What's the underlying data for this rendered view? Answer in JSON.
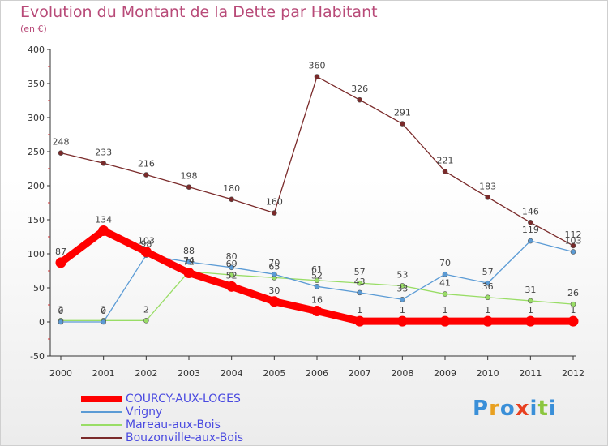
{
  "title": "Evolution du Montant de la Dette par Habitant",
  "subtitle": "(en €)",
  "logo": {
    "text": "Proxiti",
    "colors": [
      "#3a8fd8",
      "#e8a020",
      "#3a8fd8",
      "#e84020",
      "#3a8fd8",
      "#8cc63f",
      "#3a8fd8"
    ]
  },
  "chart_data": {
    "type": "line",
    "x": [
      "2000",
      "2001",
      "2002",
      "2003",
      "2004",
      "2005",
      "2006",
      "2007",
      "2008",
      "2009",
      "2010",
      "2011",
      "2012"
    ],
    "ylim": [
      -50,
      400
    ],
    "yticks": [
      "-50",
      "0",
      "50",
      "100",
      "150",
      "200",
      "250",
      "300",
      "350",
      "400"
    ],
    "grid": false,
    "legend_position": "bottom-left",
    "series": [
      {
        "name": "COURCY-AUX-LOGES",
        "color": "#ff0000",
        "values": [
          87,
          134,
          103,
          72,
          52,
          30,
          16,
          1,
          1,
          1,
          1,
          1,
          1
        ],
        "labels": [
          "87",
          "134",
          "103",
          "72",
          "52",
          "30",
          "16",
          "1",
          "1",
          "1",
          "1",
          "1",
          "1"
        ]
      },
      {
        "name": "Vrigny",
        "color": "#5b9bd5",
        "values": [
          0,
          0,
          98,
          88,
          80,
          70,
          52,
          43,
          33,
          70,
          57,
          119,
          103
        ],
        "labels": [
          "0",
          "0",
          "98",
          "88",
          "80",
          "70",
          "52",
          "43",
          "33",
          "70",
          "57",
          "119",
          "103"
        ]
      },
      {
        "name": "Mareau-aux-Bois",
        "color": "#99dd66",
        "values": [
          2,
          2,
          2,
          74,
          69,
          65,
          61,
          57,
          53,
          41,
          36,
          31,
          26
        ],
        "labels": [
          "2",
          "2",
          "2",
          "74",
          "69",
          "65",
          "61",
          "57",
          "53",
          "41",
          "36",
          "31",
          "26"
        ]
      },
      {
        "name": "Bouzonville-aux-Bois",
        "color": "#7a2a2a",
        "values": [
          248,
          233,
          216,
          198,
          180,
          160,
          360,
          326,
          291,
          221,
          183,
          146,
          112
        ],
        "labels": [
          "248",
          "233",
          "216",
          "198",
          "180",
          "160",
          "360",
          "326",
          "291",
          "221",
          "183",
          "146",
          "112"
        ]
      }
    ]
  }
}
